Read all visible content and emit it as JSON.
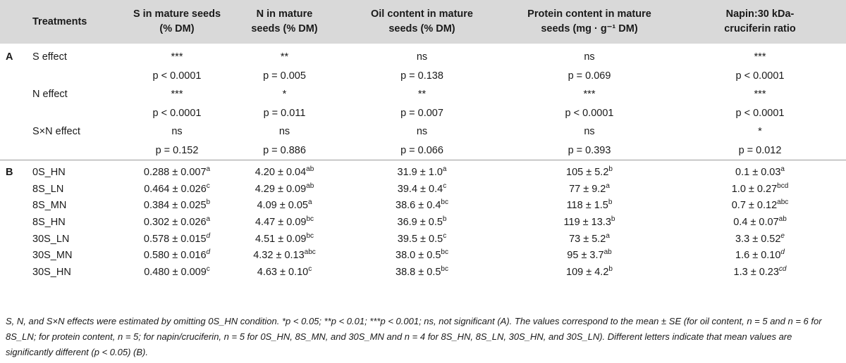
{
  "header": {
    "treatments": "Treatments",
    "s": "S in mature seeds (% DM)",
    "n": "N in mature seeds (% DM)",
    "oil": "Oil content in mature seeds (% DM)",
    "protein": "Protein content in mature seeds (mg · g⁻¹ DM)",
    "napin": "Napin:30 kDa-cruciferin ratio"
  },
  "section_a": {
    "label": "A",
    "rows": [
      {
        "label": "S effect",
        "values": [
          "***",
          "**",
          "ns",
          "ns",
          "***"
        ]
      },
      {
        "label": "",
        "values": [
          "p < 0.0001",
          "p = 0.005",
          "p = 0.138",
          "p = 0.069",
          "p < 0.0001"
        ]
      },
      {
        "label": "N effect",
        "values": [
          "***",
          "*",
          "**",
          "***",
          "***"
        ]
      },
      {
        "label": "",
        "values": [
          "p < 0.0001",
          "p = 0.011",
          "p = 0.007",
          "p < 0.0001",
          "p < 0.0001"
        ]
      },
      {
        "label": "S×N effect",
        "values": [
          "ns",
          "ns",
          "ns",
          "ns",
          "*"
        ]
      },
      {
        "label": "",
        "values": [
          "p = 0.152",
          "p = 0.886",
          "p = 0.066",
          "p = 0.393",
          "p = 0.012"
        ]
      }
    ]
  },
  "section_b": {
    "label": "B",
    "rows": [
      {
        "label": "0S_HN",
        "values": [
          [
            "0.288 ± 0.007",
            "a",
            false
          ],
          [
            "4.20 ± 0.04",
            "ab",
            false
          ],
          [
            "31.9 ± 1.0",
            "a",
            false
          ],
          [
            "105 ± 5.2",
            "b",
            false
          ],
          [
            "0.1 ± 0.03",
            "a",
            false
          ]
        ]
      },
      {
        "label": "8S_LN",
        "values": [
          [
            "0.464 ± 0.026",
            "c",
            false
          ],
          [
            "4.29 ± 0.09",
            "ab",
            false
          ],
          [
            "39.4 ± 0.4",
            "c",
            false
          ],
          [
            "77 ± 9.2",
            "a",
            false
          ],
          [
            "1.0 ± 0.27",
            "bcd",
            false
          ]
        ]
      },
      {
        "label": "8S_MN",
        "values": [
          [
            "0.384 ± 0.025",
            "b",
            false
          ],
          [
            "4.09 ± 0.05",
            "a",
            false
          ],
          [
            "38.6 ± 0.4",
            "bc",
            false
          ],
          [
            "118 ± 1.5",
            "b",
            false
          ],
          [
            "0.7 ± 0.12",
            "abc",
            false
          ]
        ]
      },
      {
        "label": "8S_HN",
        "values": [
          [
            "0.302 ± 0.026",
            "a",
            false
          ],
          [
            "4.47 ± 0.09",
            "bc",
            false
          ],
          [
            "36.9 ± 0.5",
            "b",
            false
          ],
          [
            "119 ± 13.3",
            "b",
            false
          ],
          [
            "0.4 ± 0.07",
            "ab",
            false
          ]
        ]
      },
      {
        "label": "30S_LN",
        "values": [
          [
            "0.578 ± 0.015",
            "d",
            true
          ],
          [
            "4.51 ± 0.09",
            "bc",
            false
          ],
          [
            "39.5 ± 0.5",
            "c",
            false
          ],
          [
            "73 ± 5.2",
            "a",
            false
          ],
          [
            "3.3 ± 0.52",
            "e",
            true
          ]
        ]
      },
      {
        "label": "30S_MN",
        "values": [
          [
            "0.580 ± 0.016",
            "d",
            true
          ],
          [
            "4.32 ± 0.13",
            "abc",
            false
          ],
          [
            "38.0 ± 0.5",
            "bc",
            false
          ],
          [
            "95 ± 3.7",
            "ab",
            false
          ],
          [
            "1.6 ± 0.10",
            "d",
            true
          ]
        ]
      },
      {
        "label": "30S_HN",
        "values": [
          [
            "0.480 ± 0.009",
            "c",
            false
          ],
          [
            "4.63 ± 0.10",
            "c",
            false
          ],
          [
            "38.8 ± 0.5",
            "bc",
            false
          ],
          [
            "109 ± 4.2",
            "b",
            false
          ],
          [
            "1.3 ± 0.23",
            "cd",
            true
          ]
        ]
      }
    ]
  },
  "footnote": "S, N, and S×N effects were estimated by omitting 0S_HN condition. *p < 0.05; **p < 0.01; ***p < 0.001; ns, not significant (A). The values correspond to the mean ± SE (for oil content, n = 5 and n = 6 for 8S_LN; for protein content, n = 5; for napin/cruciferin, n = 5 for 0S_HN, 8S_MN, and 30S_MN and n = 4 for 8S_HN, 8S_LN, 30S_HN, and 30S_LN). Different letters indicate that mean values are significantly different (p < 0.05) (B)."
}
